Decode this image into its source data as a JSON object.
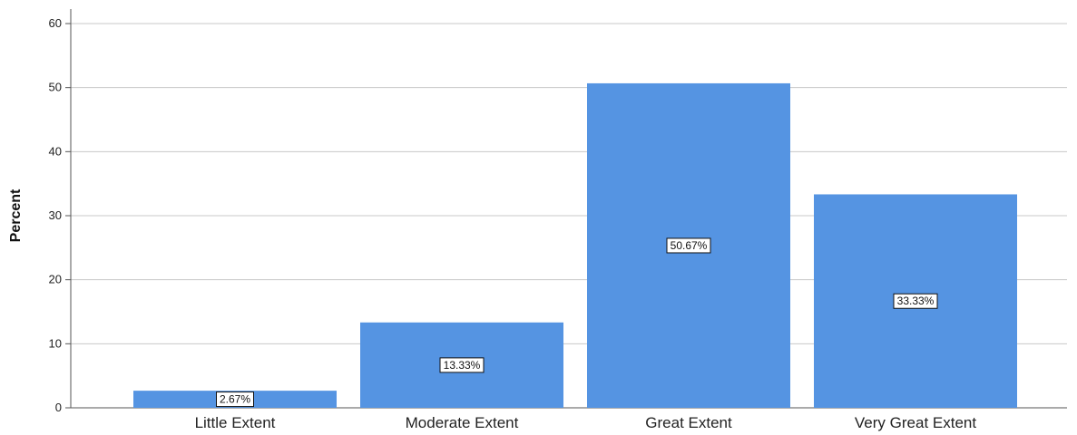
{
  "chart_data": {
    "type": "bar",
    "categories": [
      "Little Extent",
      "Moderate Extent",
      "Great Extent",
      "Very Great Extent"
    ],
    "values": [
      2.67,
      13.33,
      50.67,
      33.33
    ],
    "data_labels": [
      "2.67%",
      "13.33%",
      "50.67%",
      "33.33%"
    ],
    "ylabel": "Percent",
    "xlabel": "",
    "ylim": [
      0,
      60
    ],
    "yticks": [
      0,
      10,
      20,
      30,
      40,
      50,
      60
    ],
    "grid": true,
    "colors": {
      "bar": "#5594e2",
      "grid": "#c8c8c8",
      "axis": "#555555"
    }
  }
}
